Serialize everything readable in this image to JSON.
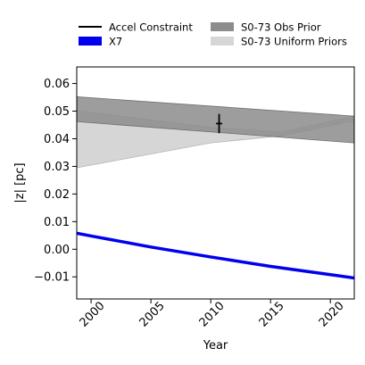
{
  "chart_data": {
    "type": "line",
    "title": "",
    "xlabel": "Year",
    "ylabel": "|z| [pc]",
    "xlim": [
      1998.8,
      2022
    ],
    "ylim": [
      -0.018,
      0.066
    ],
    "xticks": [
      2000,
      2005,
      2010,
      2015,
      2020
    ],
    "xtick_labels": [
      "2000",
      "2005",
      "2010",
      "2015",
      "2020"
    ],
    "yticks": [
      -0.01,
      0.0,
      0.01,
      0.02,
      0.03,
      0.04,
      0.05,
      0.06
    ],
    "ytick_labels": [
      "−0.01",
      "0.00",
      "0.01",
      "0.02",
      "0.03",
      "0.04",
      "0.05",
      "0.06"
    ],
    "grid": false,
    "legend_position": "top, outside plot",
    "legend": [
      {
        "label": "Accel Constraint",
        "style": "line",
        "color": "#000000"
      },
      {
        "label": "X7",
        "style": "patch",
        "color": "#0000ee"
      },
      {
        "label": "S0-73 Obs Prior",
        "style": "patch",
        "color": "#8c8c8c"
      },
      {
        "label": "S0-73 Uniform Priors",
        "style": "patch",
        "color": "#d6d6d6"
      }
    ],
    "series": [
      {
        "name": "X7",
        "type": "line",
        "color": "#0000ee",
        "x": [
          1998.8,
          2000,
          2005,
          2010,
          2015,
          2020,
          2022
        ],
        "y": [
          0.0058,
          0.0048,
          0.0008,
          -0.0028,
          -0.0062,
          -0.0092,
          -0.0104
        ]
      },
      {
        "name": "S0-73 Uniform Priors",
        "type": "band",
        "color": "#d6d6d6",
        "x": [
          1998.8,
          2010,
          2016,
          2022
        ],
        "upper": [
          0.0502,
          0.0441,
          0.0425,
          0.0482
        ],
        "lower": [
          0.0295,
          0.0385,
          0.0411,
          0.0465
        ]
      },
      {
        "name": "S0-73 Obs Prior",
        "type": "band",
        "color": "#8c8c8c",
        "x": [
          1998.8,
          2022
        ],
        "upper": [
          0.0552,
          0.0482
        ],
        "lower": [
          0.0462,
          0.0385
        ]
      },
      {
        "name": "Accel Constraint",
        "type": "errorbar",
        "color": "#000000",
        "x": 2010.7,
        "xerr": 0.25,
        "y": 0.0455,
        "yerr_low": 0.0035,
        "yerr_high": 0.0035
      }
    ]
  }
}
